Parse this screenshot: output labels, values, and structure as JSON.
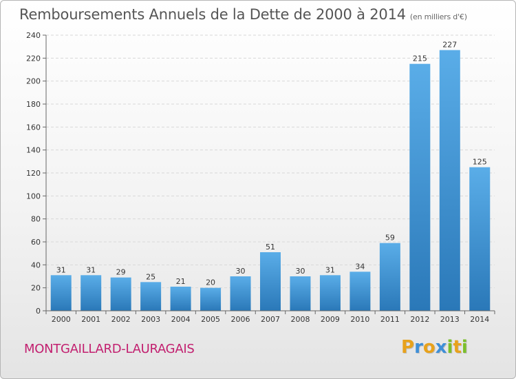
{
  "header": {
    "title": "Remboursements Annuels de la Dette de 2000 à 2014",
    "unit": "(en milliers d'€)"
  },
  "footer": {
    "commune": "MONTGAILLARD-LAURAGAIS"
  },
  "logo": {
    "text": "Proxiti",
    "letters": [
      {
        "ch": "P",
        "color": "#e8a21c"
      },
      {
        "ch": "r",
        "color": "#3e8fd8"
      },
      {
        "ch": "o",
        "color": "#e8a21c"
      },
      {
        "ch": "x",
        "color": "#3e8fd8"
      },
      {
        "ch": "i",
        "color": "#7bbf2a"
      },
      {
        "ch": "t",
        "color": "#e8a21c"
      },
      {
        "ch": "i",
        "color": "#7bbf2a"
      }
    ]
  },
  "chart_data": {
    "type": "bar",
    "categories": [
      "2000",
      "2001",
      "2002",
      "2003",
      "2004",
      "2005",
      "2006",
      "2007",
      "2008",
      "2009",
      "2010",
      "2011",
      "2012",
      "2013",
      "2014"
    ],
    "values": [
      31,
      31,
      29,
      25,
      21,
      20,
      30,
      51,
      30,
      31,
      34,
      59,
      215,
      227,
      125
    ],
    "title": "Remboursements Annuels de la Dette de 2000 à 2014",
    "subtitle": "(en milliers d'€)",
    "xlabel": "",
    "ylabel": "",
    "ylim": [
      0,
      240
    ],
    "yticks": [
      0,
      20,
      40,
      60,
      80,
      100,
      120,
      140,
      160,
      180,
      200,
      220,
      240
    ],
    "grid": true,
    "bar_color_light": "#5aade8",
    "bar_color_dark": "#2a78b8"
  }
}
